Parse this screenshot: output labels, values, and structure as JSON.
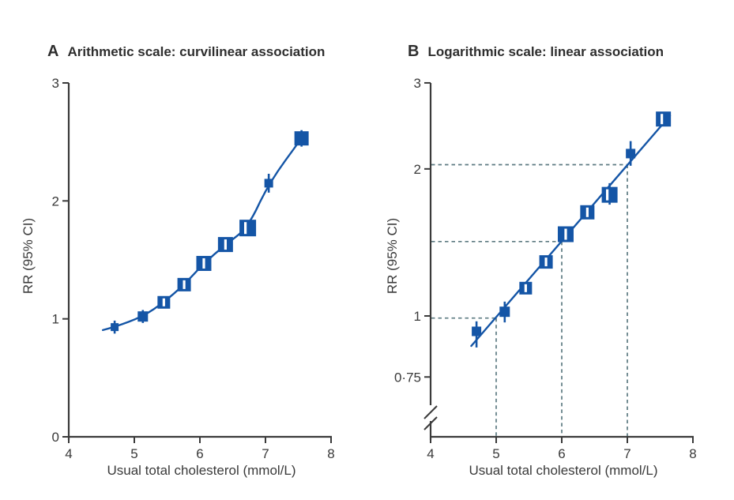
{
  "figure": {
    "panels": [
      {
        "letter": "A",
        "title": "Arithmetic scale: curvilinear association",
        "ylabel": "RR (95% CI)",
        "xlabel": "Usual total cholesterol (mmol/L)"
      },
      {
        "letter": "B",
        "title": "Logarithmic scale: linear association",
        "ylabel": "RR (95% CI)",
        "xlabel": "Usual total cholesterol (mmol/L)"
      }
    ]
  },
  "colors": {
    "marker_blue": "#1455a6",
    "guide_teal": "#5d7b82",
    "axis_gray": "#3a3a3a",
    "ci_band_white": "#ffffff"
  },
  "chart_data": [
    {
      "type": "scatter",
      "panel": "A",
      "title": "Arithmetic scale: curvilinear association",
      "xlabel": "Usual total cholesterol (mmol/L)",
      "ylabel": "RR (95% CI)",
      "x_scale": "linear",
      "y_scale": "linear",
      "xlim": [
        4,
        8
      ],
      "ylim": [
        0,
        3
      ],
      "x_ticks": [
        {
          "v": 4,
          "label": "4"
        },
        {
          "v": 5,
          "label": "5"
        },
        {
          "v": 6,
          "label": "6"
        },
        {
          "v": 7,
          "label": "7"
        },
        {
          "v": 8,
          "label": "8"
        }
      ],
      "y_ticks": [
        {
          "v": 3,
          "label": "3"
        },
        {
          "v": 2,
          "label": "2"
        },
        {
          "v": 1,
          "label": "1"
        },
        {
          "v": 0,
          "label": "0"
        }
      ],
      "grid": false,
      "legend": "none",
      "axis_break": false,
      "points": [
        {
          "x": 4.7,
          "rr": 0.93,
          "ci": [
            0.875,
            0.985
          ],
          "size": 10,
          "inner": false
        },
        {
          "x": 5.13,
          "rr": 1.02,
          "ci": [
            0.965,
            1.075
          ],
          "size": 13,
          "inner": false
        },
        {
          "x": 5.45,
          "rr": 1.14,
          "ci": null,
          "size": 16,
          "inner": true
        },
        {
          "x": 5.76,
          "rr": 1.29,
          "ci": null,
          "size": 17,
          "inner": true
        },
        {
          "x": 6.06,
          "rr": 1.47,
          "ci": null,
          "size": 19,
          "inner": true
        },
        {
          "x": 6.39,
          "rr": 1.63,
          "ci": null,
          "size": 19,
          "inner": true
        },
        {
          "x": 6.73,
          "rr": 1.77,
          "ci": null,
          "size": 21,
          "inner": true,
          "innerDx": -3
        },
        {
          "x": 7.05,
          "rr": 2.15,
          "ci": [
            2.07,
            2.23
          ],
          "size": 11,
          "inner": false
        },
        {
          "x": 7.55,
          "rr": 2.53,
          "ci": [
            2.46,
            2.6
          ],
          "size": 18,
          "inner": false
        }
      ],
      "trend": {
        "type": "curve-through-points",
        "extend_low": [
          4.52,
          0.905
        ],
        "extend_high": [
          7.58,
          2.56
        ]
      },
      "guides": []
    },
    {
      "type": "scatter",
      "panel": "B",
      "title": "Logarithmic scale: linear association",
      "xlabel": "Usual total cholesterol (mmol/L)",
      "ylabel": "RR (95% CI)",
      "x_scale": "linear",
      "y_scale": "log",
      "xlim": [
        4,
        8
      ],
      "ylim": [
        0.6,
        3
      ],
      "x_ticks": [
        {
          "v": 4,
          "label": "4"
        },
        {
          "v": 5,
          "label": "5"
        },
        {
          "v": 6,
          "label": "6"
        },
        {
          "v": 7,
          "label": "7"
        },
        {
          "v": 8,
          "label": "8"
        }
      ],
      "y_ticks": [
        {
          "v": 3,
          "label": "3"
        },
        {
          "v": 2,
          "label": "2"
        },
        {
          "v": 1,
          "label": "1"
        },
        {
          "v": 0.75,
          "label": "0·75"
        }
      ],
      "grid": false,
      "legend": "none",
      "axis_break": true,
      "points": [
        {
          "x": 4.7,
          "rr": 0.93,
          "ci": [
            0.862,
            0.975
          ],
          "size": 12,
          "inner": false
        },
        {
          "x": 5.13,
          "rr": 1.02,
          "ci": [
            0.97,
            1.07
          ],
          "size": 13,
          "inner": false
        },
        {
          "x": 5.45,
          "rr": 1.14,
          "ci": null,
          "size": 16,
          "inner": true
        },
        {
          "x": 5.76,
          "rr": 1.29,
          "ci": null,
          "size": 17,
          "inner": true
        },
        {
          "x": 6.06,
          "rr": 1.47,
          "ci": null,
          "size": 20,
          "inner": true
        },
        {
          "x": 6.39,
          "rr": 1.63,
          "ci": null,
          "size": 18,
          "inner": true
        },
        {
          "x": 6.73,
          "rr": 1.77,
          "ci": [
            1.69,
            1.87
          ],
          "size": 20,
          "inner": true,
          "innerDx": -3
        },
        {
          "x": 7.05,
          "rr": 2.15,
          "ci": [
            2.03,
            2.28
          ],
          "size": 12,
          "inner": false
        },
        {
          "x": 7.55,
          "rr": 2.53,
          "ci": null,
          "size": 19,
          "inner": true,
          "innerDx": -2
        }
      ],
      "trend": {
        "type": "straight",
        "from": [
          4.62,
          0.868
        ],
        "to": [
          7.65,
          2.57
        ]
      },
      "guides": [
        {
          "x": 5,
          "rr": 0.99
        },
        {
          "x": 6,
          "rr": 1.42
        },
        {
          "x": 7,
          "rr": 2.04
        }
      ]
    }
  ]
}
